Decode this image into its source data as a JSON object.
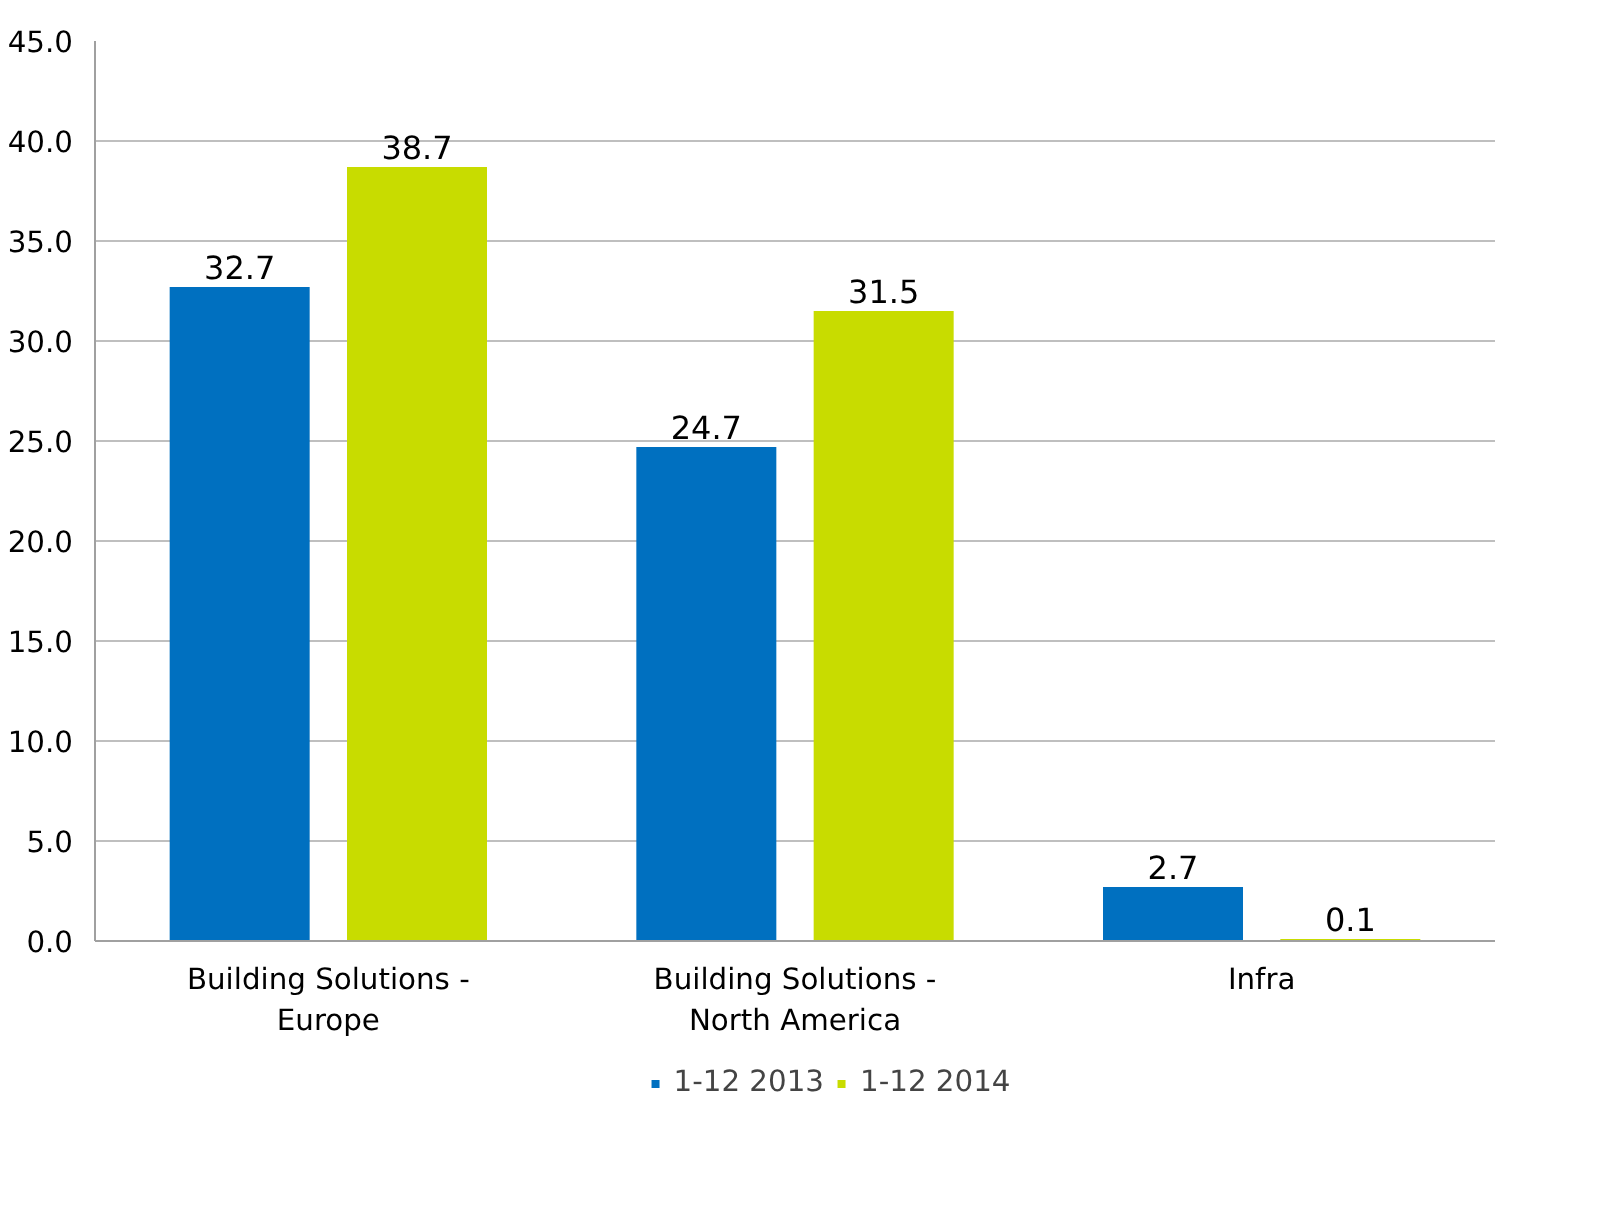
{
  "chart_data": {
    "type": "bar",
    "categories": [
      "Building Solutions -\nEurope",
      "Building Solutions -\nNorth America",
      "Infra"
    ],
    "series": [
      {
        "name": "1-12 2013",
        "color": "#0070c0",
        "values": [
          32.7,
          24.7,
          2.7
        ]
      },
      {
        "name": "1-12 2014",
        "color": "#c8dc00",
        "values": [
          38.7,
          31.5,
          0.1
        ]
      }
    ],
    "ylim": [
      0,
      45
    ],
    "yticks": [
      {
        "value": 0,
        "label": "0.0"
      },
      {
        "value": 5,
        "label": "5.0"
      },
      {
        "value": 10,
        "label": "10.0"
      },
      {
        "value": 15,
        "label": "15.0"
      },
      {
        "value": 20,
        "label": "20.0"
      },
      {
        "value": 25,
        "label": "25.0"
      },
      {
        "value": 30,
        "label": "30.0"
      },
      {
        "value": 35,
        "label": "35.0"
      },
      {
        "value": 40,
        "label": "40.0"
      },
      {
        "value": 45,
        "label": "45.0"
      }
    ],
    "grid": "y",
    "legend": "bottom",
    "data_labels": true
  }
}
